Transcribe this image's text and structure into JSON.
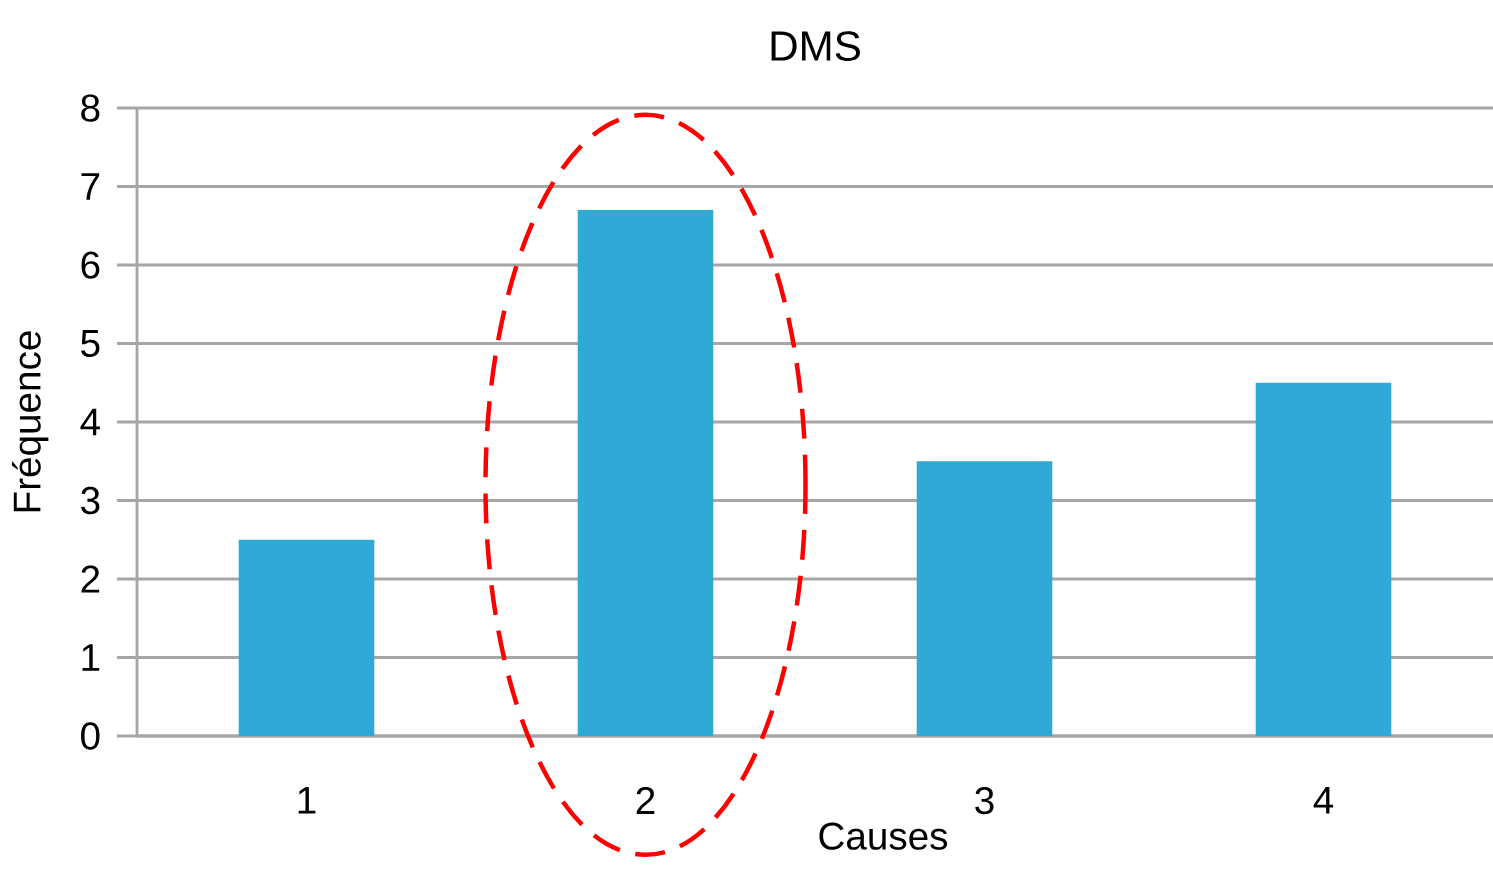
{
  "chart_data": {
    "type": "bar",
    "title": "DMS",
    "xlabel": "Causes",
    "ylabel": "Fréquence",
    "categories": [
      "1",
      "2",
      "3",
      "4"
    ],
    "values": [
      2.5,
      6.7,
      3.5,
      4.5
    ],
    "color": "#31a9d6",
    "ylim": [
      0,
      8
    ],
    "yticks": [
      0,
      1,
      2,
      3,
      4,
      5,
      6,
      7,
      8
    ],
    "grid": "y"
  }
}
